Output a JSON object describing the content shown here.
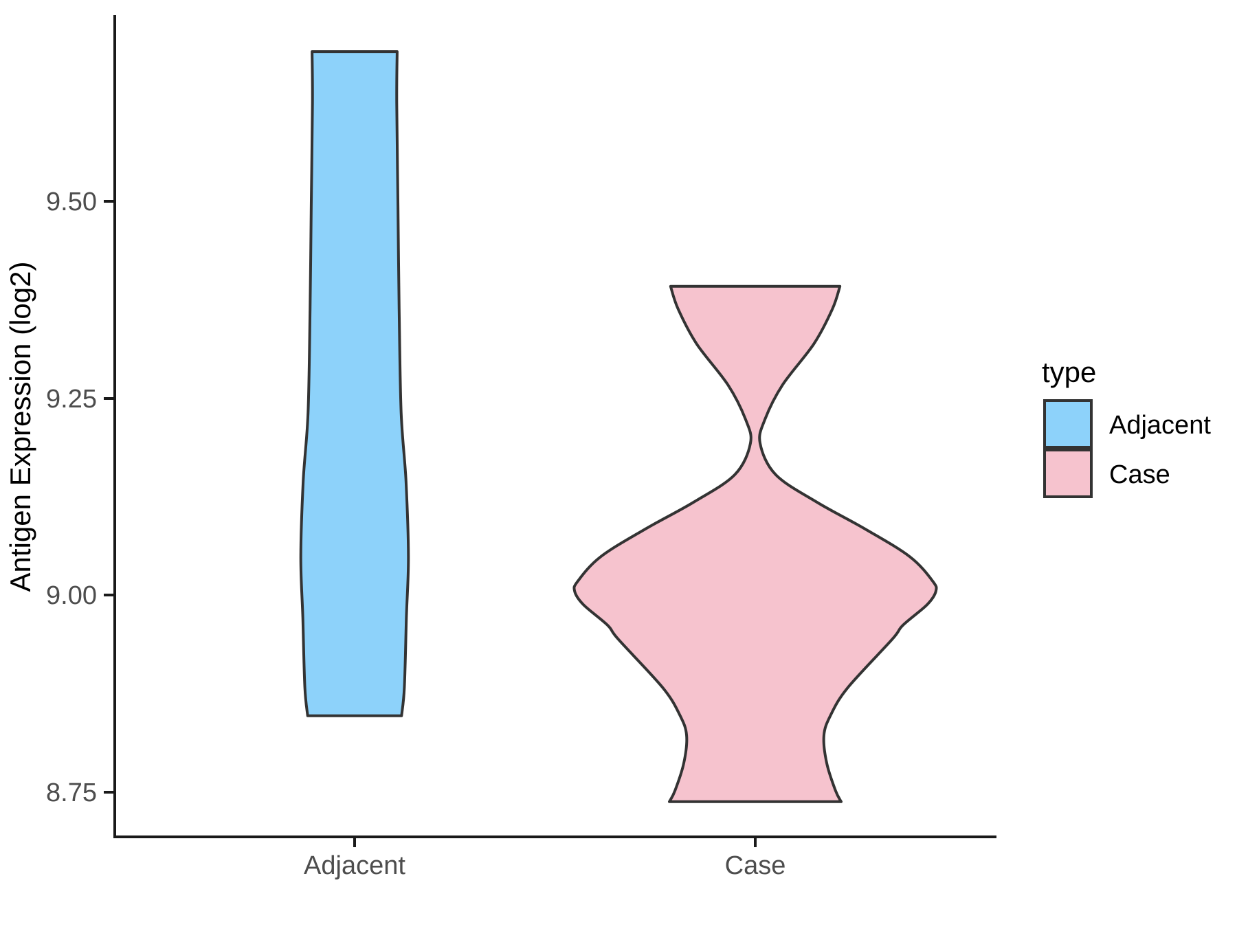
{
  "chart": {
    "y_axis": {
      "title": "Antigen Expression (log2)",
      "ticks": [
        {
          "label": "9.50",
          "value": 9.5
        },
        {
          "label": "9.25",
          "value": 9.25
        },
        {
          "label": "9.00",
          "value": 9.0
        },
        {
          "label": "8.75",
          "value": 8.75
        }
      ]
    },
    "x_axis": {
      "categories": [
        {
          "label": "Adjacent"
        },
        {
          "label": "Case"
        }
      ]
    },
    "legend": {
      "title": "type",
      "entries": [
        {
          "label": "Adjacent",
          "color": "#8DD2FA"
        },
        {
          "label": "Case",
          "color": "#F6C3CE"
        }
      ]
    }
  },
  "colors": {
    "adjacent_fill": "#8DD2FA",
    "case_fill": "#F6C3CE",
    "violin_outline": "#333333",
    "axis_line": "#1a1a1a",
    "tick_text": "#4d4d4d",
    "background": "#ffffff"
  },
  "chart_data": {
    "type": "violin",
    "title": "",
    "xlabel": "",
    "ylabel": "Antigen Expression (log2)",
    "categories": [
      "Adjacent",
      "Case"
    ],
    "y_ticks": [
      9.5,
      9.25,
      9.0,
      8.75
    ],
    "ylim": [
      8.69,
      9.74
    ],
    "legend_title": "type",
    "legend_position": "right",
    "grid": false,
    "series": [
      {
        "name": "Adjacent",
        "fill": "#8DD2FA",
        "value_range": [
          8.85,
          9.69
        ],
        "profile": [
          [
            9.69,
            0.106
          ],
          [
            9.625,
            0.105
          ],
          [
            9.494,
            0.108
          ],
          [
            9.363,
            0.111
          ],
          [
            9.232,
            0.116
          ],
          [
            9.145,
            0.128
          ],
          [
            9.049,
            0.134
          ],
          [
            8.971,
            0.129
          ],
          [
            8.883,
            0.124
          ],
          [
            8.847,
            0.117
          ]
        ]
      },
      {
        "name": "Case",
        "fill": "#F6C3CE",
        "value_range": [
          8.74,
          9.39
        ],
        "profile": [
          [
            9.392,
            0.211
          ],
          [
            9.363,
            0.192
          ],
          [
            9.319,
            0.146
          ],
          [
            9.267,
            0.068
          ],
          [
            9.223,
            0.024
          ],
          [
            9.193,
            0.012
          ],
          [
            9.153,
            0.051
          ],
          [
            9.118,
            0.154
          ],
          [
            9.084,
            0.274
          ],
          [
            9.049,
            0.385
          ],
          [
            9.018,
            0.442
          ],
          [
            9.005,
            0.45
          ],
          [
            8.988,
            0.428
          ],
          [
            8.962,
            0.368
          ],
          [
            8.944,
            0.341
          ],
          [
            8.883,
            0.231
          ],
          [
            8.848,
            0.188
          ],
          [
            8.822,
            0.171
          ],
          [
            8.787,
            0.178
          ],
          [
            8.752,
            0.2
          ],
          [
            8.738,
            0.214
          ]
        ]
      }
    ]
  }
}
